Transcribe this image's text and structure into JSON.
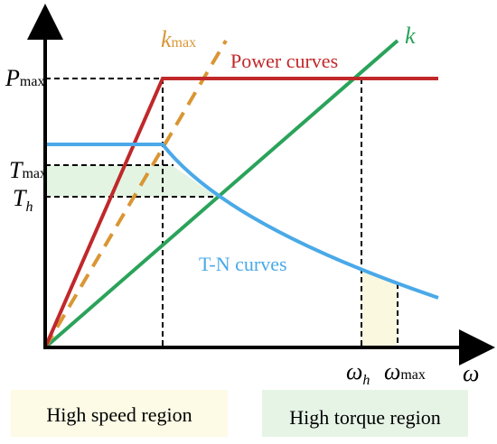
{
  "axes": {
    "y_labels": [
      {
        "base": "P",
        "sub": "max"
      },
      {
        "base": "T",
        "sub": "max"
      },
      {
        "base": "T",
        "sub": "h"
      }
    ],
    "x_labels": [
      {
        "base": "ω",
        "sub": "h"
      },
      {
        "base": "ω",
        "sub": "max"
      }
    ],
    "x_axis": "ω"
  },
  "lines": {
    "k_max": {
      "base": "k",
      "sub": "max"
    },
    "k": "k"
  },
  "curves": {
    "power": "Power curves",
    "torque": "T-N curves"
  },
  "regions": [
    "High speed region",
    "High torque region"
  ]
}
